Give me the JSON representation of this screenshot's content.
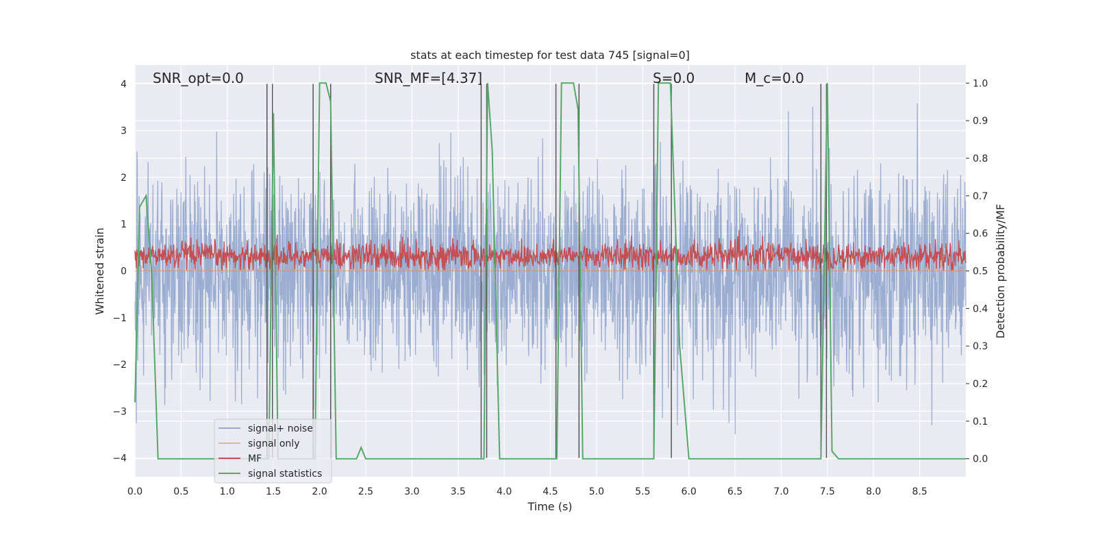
{
  "chart_data": {
    "type": "line",
    "title": "stats at each timestep for test data 745 [signal=0]",
    "xlabel": "Time (s)",
    "ylabel": "Whitened strain",
    "ylabel_right": "Detection probability/MF",
    "xlim": [
      0.0,
      9.0
    ],
    "ylim": [
      -4.4,
      4.4
    ],
    "ylim_right": [
      -0.048,
      1.048
    ],
    "xticks": [
      "0.0",
      "0.5",
      "1.0",
      "1.5",
      "2.0",
      "2.5",
      "3.0",
      "3.5",
      "4.0",
      "4.5",
      "5.0",
      "5.5",
      "6.0",
      "6.5",
      "7.0",
      "7.5",
      "8.0",
      "8.5"
    ],
    "yticks": [
      "−4",
      "−3",
      "−2",
      "−1",
      "0",
      "1",
      "2",
      "3",
      "4"
    ],
    "yticks_right": [
      "0.0",
      "0.1",
      "0.2",
      "0.3",
      "0.4",
      "0.5",
      "0.6",
      "0.7",
      "0.8",
      "0.9",
      "1.0"
    ],
    "grid": true,
    "legend_position": "lower-left",
    "annotations": [
      {
        "text": "SNR_opt=0.0",
        "x": 0.2,
        "y": 4.1
      },
      {
        "text": "SNR_MF=[4.37]",
        "x": 2.6,
        "y": 4.1
      },
      {
        "text": "S=0.0",
        "x": 5.6,
        "y": 4.1
      },
      {
        "text": "M_c=0.0",
        "x": 6.6,
        "y": 4.1
      }
    ],
    "series": [
      {
        "name": "signal+ noise",
        "color": "#4c72b0",
        "description": "whitened noise, values between about -3.5 and 3.8",
        "y_range": [
          -3.5,
          3.8
        ]
      },
      {
        "name": "signal only",
        "color": "#dd8452",
        "x": [
          0.0,
          9.0
        ],
        "y": [
          0.0,
          0.0
        ]
      },
      {
        "name": "MF",
        "color": "#c44e52",
        "axis": "right",
        "y_range": [
          0.5,
          0.6
        ]
      },
      {
        "name": "signal statistics",
        "color": "#55a868",
        "axis": "right",
        "x": [
          0.0,
          0.05,
          0.12,
          0.18,
          0.25,
          1.45,
          1.5,
          1.55,
          1.9,
          1.95,
          2.0,
          2.07,
          2.12,
          2.18,
          2.4,
          2.45,
          2.5,
          3.78,
          3.82,
          3.87,
          3.95,
          4.57,
          4.62,
          4.75,
          4.8,
          4.85,
          5.62,
          5.67,
          5.8,
          5.9,
          6.0,
          7.43,
          7.5,
          7.55,
          7.62,
          9.0
        ],
        "y": [
          0.15,
          0.67,
          0.7,
          0.5,
          0.0,
          0.0,
          0.92,
          0.0,
          0.0,
          0.0,
          1.0,
          1.0,
          0.95,
          0.0,
          0.0,
          0.03,
          0.0,
          0.0,
          1.0,
          0.82,
          0.0,
          0.0,
          1.0,
          1.0,
          0.93,
          0.0,
          0.0,
          1.0,
          1.0,
          0.3,
          0.0,
          0.0,
          1.0,
          0.02,
          0.0,
          0.0
        ]
      }
    ],
    "vertical_lines": {
      "color": "#555555",
      "x": [
        1.43,
        1.49,
        1.93,
        2.12,
        3.75,
        3.81,
        4.56,
        4.81,
        5.62,
        5.81,
        7.43,
        7.49
      ],
      "y_range": [
        -4.0,
        4.0
      ]
    }
  },
  "legend": {
    "items": [
      {
        "label": "signal+ noise",
        "color": "#4c72b0"
      },
      {
        "label": "signal only",
        "color": "#dd8452"
      },
      {
        "label": "MF",
        "color": "#c44e52"
      },
      {
        "label": "signal statistics",
        "color": "#55a868"
      }
    ]
  }
}
